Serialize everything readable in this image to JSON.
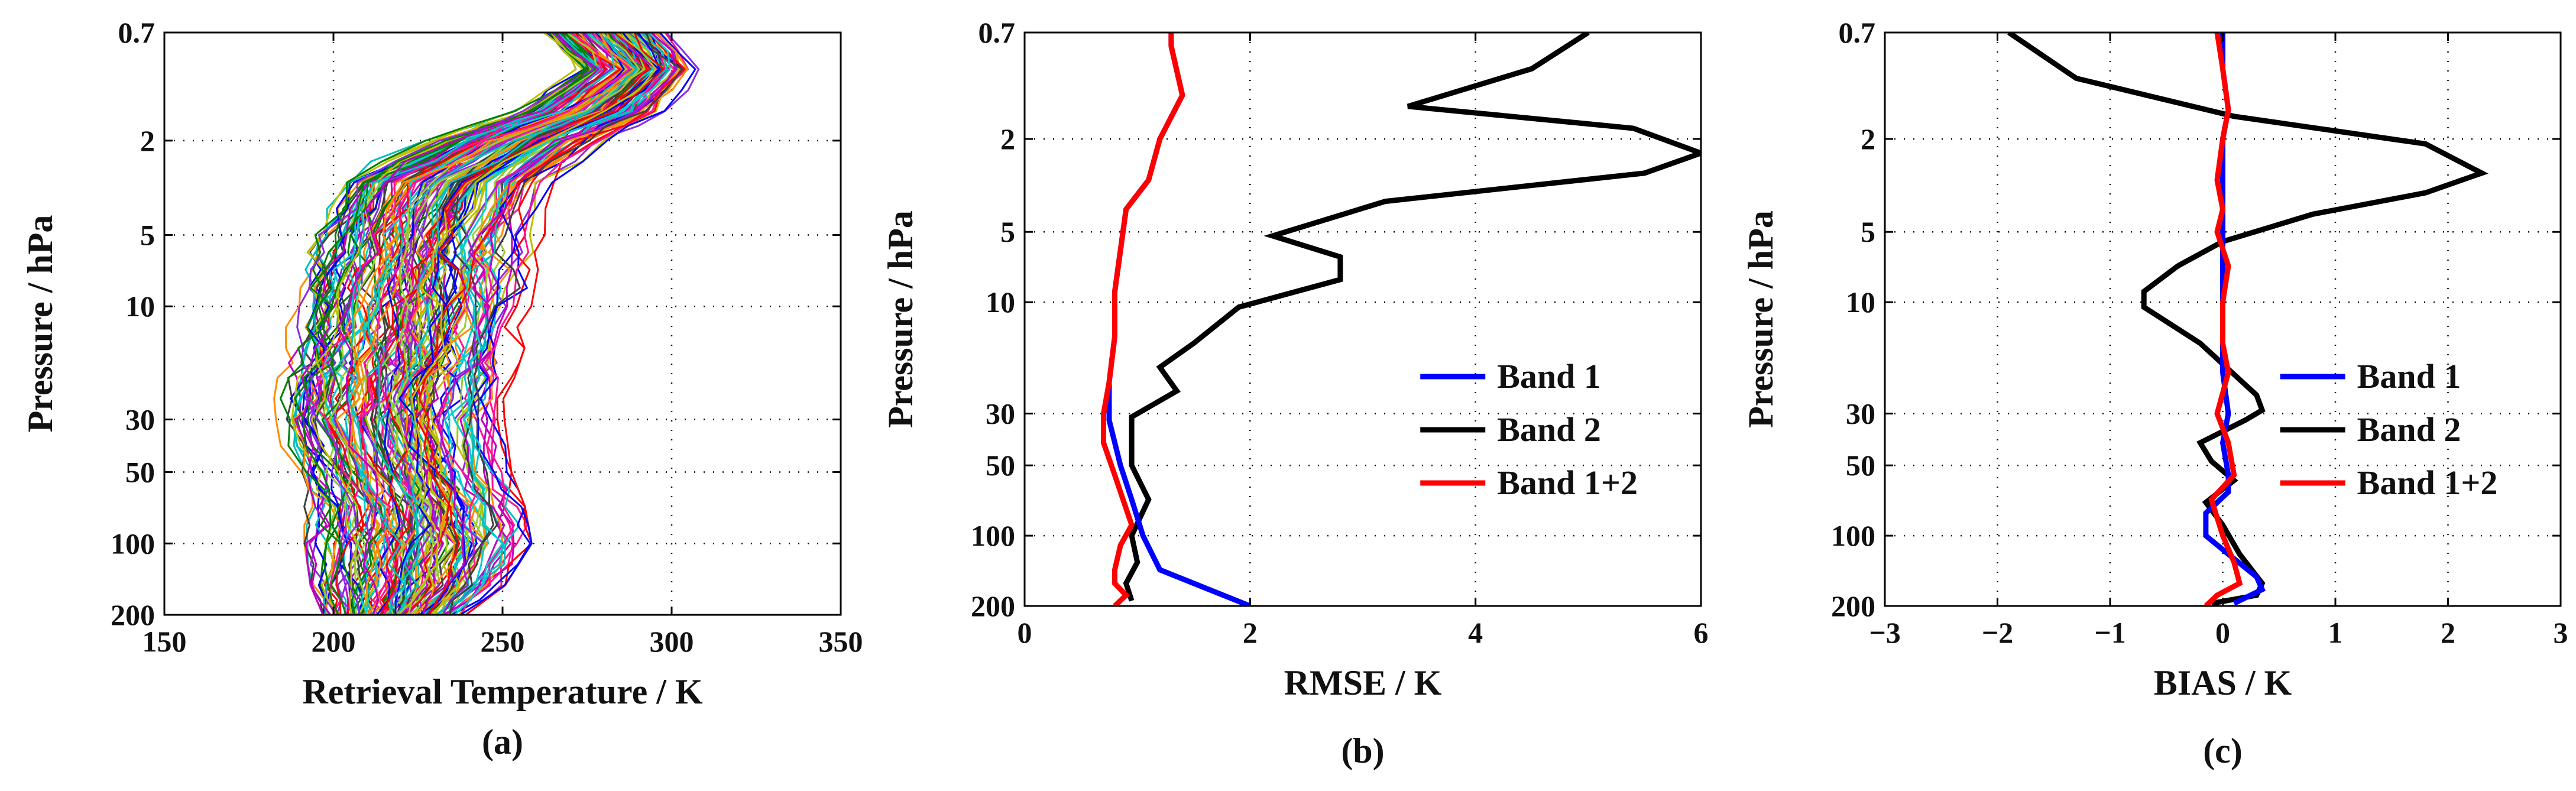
{
  "figure": {
    "panels": [
      "a",
      "b",
      "c"
    ]
  },
  "chart_data": [
    {
      "id": "a",
      "type": "line",
      "title": "",
      "caption": "(a)",
      "xlabel": "Retrieval Temperature / K",
      "ylabel": "Pressure / hPa",
      "yscale": "log",
      "y_reversed": true,
      "xlim": [
        150,
        350
      ],
      "ylim": [
        200,
        0.7
      ],
      "xticks": [
        150,
        200,
        250,
        300,
        350
      ],
      "xtick_labels": [
        "150",
        "200",
        "250",
        "300",
        "350"
      ],
      "yticks": [
        0.7,
        2,
        5,
        10,
        30,
        50,
        100,
        200
      ],
      "ytick_labels": [
        "0.7",
        "2",
        "5",
        "10",
        "30",
        "50",
        "100",
        "200"
      ],
      "grid": true,
      "pressure_levels": [
        0.7,
        1,
        1.5,
        2,
        3,
        5,
        7,
        10,
        15,
        20,
        30,
        50,
        70,
        100,
        150,
        200
      ],
      "envelope": {
        "min_K": [
          255,
          268,
          248,
          222,
          195,
          188,
          186,
          185,
          183,
          182,
          180,
          186,
          190,
          190,
          192,
          196
        ],
        "max_K": [
          305,
          312,
          302,
          285,
          270,
          264,
          262,
          260,
          258,
          255,
          252,
          254,
          258,
          260,
          252,
          240
        ]
      },
      "series_count": 150,
      "colors": [
        "#0000ff",
        "#008000",
        "#ff0000",
        "#00bfbf",
        "#bf00bf",
        "#bfbf00",
        "#404040",
        "#ff1493",
        "#00ced1",
        "#9acd32",
        "#8a2be2",
        "#ff8c00"
      ]
    },
    {
      "id": "b",
      "type": "line",
      "title": "",
      "caption": "(b)",
      "xlabel": "RMSE / K",
      "ylabel": "Pressure / hPa",
      "yscale": "log",
      "y_reversed": true,
      "xlim": [
        0,
        6
      ],
      "ylim": [
        200,
        0.7
      ],
      "xticks": [
        0,
        2,
        4,
        6
      ],
      "xtick_labels": [
        "0",
        "2",
        "4",
        "6"
      ],
      "yticks": [
        0.7,
        2,
        5,
        10,
        30,
        50,
        100,
        200
      ],
      "ytick_labels": [
        "0.7",
        "2",
        "5",
        "10",
        "30",
        "50",
        "100",
        "200"
      ],
      "grid": true,
      "legend_position": "middle-right",
      "series": [
        {
          "name": "Band 1",
          "color": "#0000ff",
          "x": [
            1.3,
            1.3,
            1.4,
            1.2,
            1.1,
            0.9,
            0.85,
            0.8,
            0.8,
            0.75,
            0.75,
            0.85,
            0.95,
            1.05,
            1.2,
            2.0
          ],
          "y": [
            0.7,
            0.8,
            1.3,
            2.0,
            3.0,
            4.0,
            6.0,
            9.0,
            14.0,
            22.0,
            32.0,
            50.0,
            70.0,
            100.0,
            140.0,
            200.0
          ]
        },
        {
          "name": "Band 2",
          "color": "#000000",
          "x": [
            5.0,
            4.5,
            3.4,
            5.4,
            6.0,
            5.5,
            3.2,
            2.2,
            2.8,
            2.8,
            1.9,
            1.5,
            1.2,
            1.35,
            0.95,
            0.95,
            1.1,
            0.95,
            1.0,
            0.9,
            0.95
          ],
          "y": [
            0.7,
            1.0,
            1.45,
            1.8,
            2.3,
            2.8,
            3.7,
            5.2,
            6.4,
            8.0,
            10.5,
            15.0,
            19.0,
            24.0,
            31.0,
            50.0,
            70.0,
            100.0,
            130.0,
            160.0,
            190.0
          ]
        },
        {
          "name": "Band 1+2",
          "color": "#ff0000",
          "x": [
            1.3,
            1.3,
            1.4,
            1.2,
            1.1,
            0.9,
            0.85,
            0.8,
            0.8,
            0.75,
            0.7,
            0.7,
            0.8,
            0.95,
            0.85,
            0.8,
            0.8,
            0.9,
            0.8
          ],
          "y": [
            0.7,
            0.8,
            1.3,
            2.0,
            3.0,
            4.0,
            6.0,
            9.0,
            14.0,
            22.0,
            30.0,
            40.0,
            55.0,
            90.0,
            110.0,
            140.0,
            160.0,
            180.0,
            200.0
          ]
        }
      ]
    },
    {
      "id": "c",
      "type": "line",
      "title": "",
      "caption": "(c)",
      "xlabel": "BIAS / K",
      "ylabel": "Pressure / hPa",
      "yscale": "log",
      "y_reversed": true,
      "xlim": [
        -3,
        3
      ],
      "ylim": [
        200,
        0.7
      ],
      "xticks": [
        -3,
        -2,
        -1,
        0,
        1,
        2,
        3
      ],
      "xtick_labels": [
        "−3",
        "−2",
        "−1",
        "0",
        "1",
        "2",
        "3"
      ],
      "yticks": [
        0.7,
        2,
        5,
        10,
        30,
        50,
        100,
        200
      ],
      "ytick_labels": [
        "0.7",
        "2",
        "5",
        "10",
        "30",
        "50",
        "100",
        "200"
      ],
      "grid": true,
      "legend_position": "middle-right",
      "series": [
        {
          "name": "Band 1",
          "color": "#0000ff",
          "x": [
            0.0,
            0.0,
            0.05,
            0.0,
            0.0,
            0.0,
            0.0,
            0.0,
            0.0,
            0.05,
            0.0,
            0.05,
            0.05,
            -0.15,
            -0.15,
            0.05,
            0.3,
            0.35,
            0.1
          ],
          "y": [
            0.7,
            1.0,
            1.5,
            2.0,
            3.0,
            5.0,
            8.0,
            12.0,
            20.0,
            30.0,
            40.0,
            55.0,
            65.0,
            80.0,
            100.0,
            120.0,
            150.0,
            170.0,
            195.0
          ]
        },
        {
          "name": "Band 2",
          "color": "#000000",
          "x": [
            -1.9,
            -1.3,
            0.1,
            1.8,
            2.3,
            1.8,
            0.8,
            0.0,
            -0.4,
            -0.7,
            -0.7,
            -0.2,
            0.3,
            0.35,
            0.2,
            -0.2,
            -0.1,
            0.1,
            -0.15,
            0.0,
            0.15,
            0.35,
            0.3,
            -0.1
          ],
          "y": [
            0.7,
            1.1,
            1.6,
            2.1,
            2.8,
            3.4,
            4.2,
            5.5,
            7.0,
            9.0,
            10.5,
            15.0,
            25.0,
            29.0,
            32.0,
            40.0,
            48.0,
            58.0,
            72.0,
            90.0,
            120.0,
            160.0,
            180.0,
            195.0
          ]
        },
        {
          "name": "Band 1+2",
          "color": "#ff0000",
          "x": [
            -0.05,
            0.0,
            0.05,
            0.0,
            -0.05,
            0.0,
            -0.05,
            0.05,
            0.0,
            0.0,
            0.05,
            -0.05,
            0.05,
            0.1,
            -0.1,
            0.0,
            0.1,
            0.15,
            -0.05,
            -0.15
          ],
          "y": [
            0.7,
            1.0,
            1.5,
            2.0,
            3.0,
            4.0,
            5.0,
            7.0,
            10.0,
            15.0,
            20.0,
            30.0,
            40.0,
            55.0,
            70.0,
            100.0,
            130.0,
            160.0,
            180.0,
            200.0
          ]
        }
      ]
    }
  ]
}
